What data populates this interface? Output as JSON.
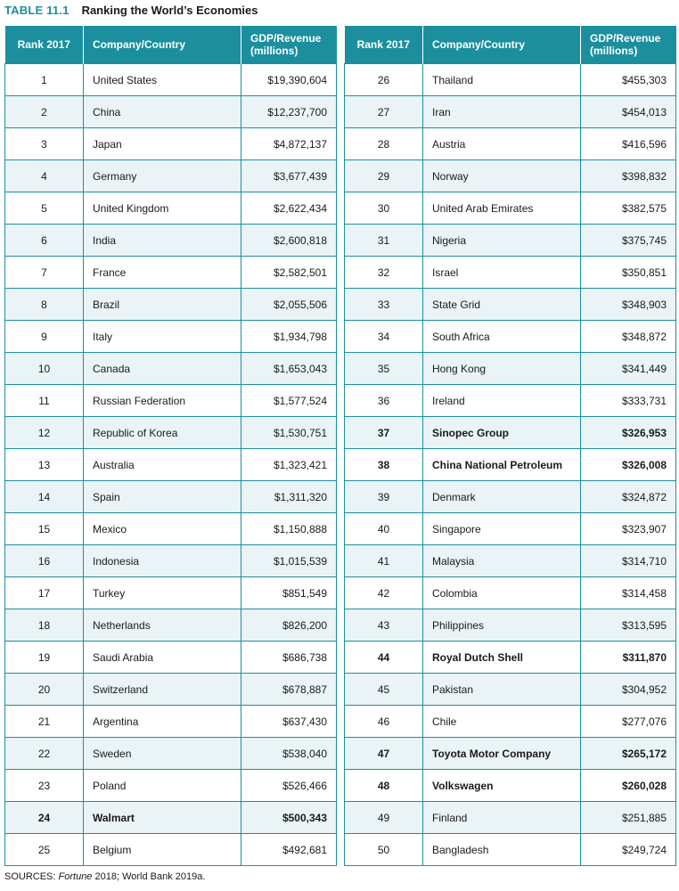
{
  "title": {
    "label": "TABLE 11.1",
    "text": "Ranking the World’s Economies"
  },
  "headers": {
    "rank": "Rank 2017",
    "name": "Company/Country",
    "value_line1": "GDP/Revenue",
    "value_line2": "(millions)"
  },
  "left_rows": [
    {
      "rank": "1",
      "name": "United States",
      "value": "$19,390,604",
      "bold": false
    },
    {
      "rank": "2",
      "name": "China",
      "value": "$12,237,700",
      "bold": false
    },
    {
      "rank": "3",
      "name": "Japan",
      "value": "$4,872,137",
      "bold": false
    },
    {
      "rank": "4",
      "name": "Germany",
      "value": "$3,677,439",
      "bold": false
    },
    {
      "rank": "5",
      "name": "United Kingdom",
      "value": "$2,622,434",
      "bold": false
    },
    {
      "rank": "6",
      "name": "India",
      "value": "$2,600,818",
      "bold": false
    },
    {
      "rank": "7",
      "name": "France",
      "value": "$2,582,501",
      "bold": false
    },
    {
      "rank": "8",
      "name": "Brazil",
      "value": "$2,055,506",
      "bold": false
    },
    {
      "rank": "9",
      "name": "Italy",
      "value": "$1,934,798",
      "bold": false
    },
    {
      "rank": "10",
      "name": "Canada",
      "value": "$1,653,043",
      "bold": false
    },
    {
      "rank": "11",
      "name": "Russian Federation",
      "value": "$1,577,524",
      "bold": false
    },
    {
      "rank": "12",
      "name": "Republic of Korea",
      "value": "$1,530,751",
      "bold": false
    },
    {
      "rank": "13",
      "name": "Australia",
      "value": "$1,323,421",
      "bold": false
    },
    {
      "rank": "14",
      "name": "Spain",
      "value": "$1,311,320",
      "bold": false
    },
    {
      "rank": "15",
      "name": "Mexico",
      "value": "$1,150,888",
      "bold": false
    },
    {
      "rank": "16",
      "name": "Indonesia",
      "value": "$1,015,539",
      "bold": false
    },
    {
      "rank": "17",
      "name": "Turkey",
      "value": "$851,549",
      "bold": false
    },
    {
      "rank": "18",
      "name": "Netherlands",
      "value": "$826,200",
      "bold": false
    },
    {
      "rank": "19",
      "name": "Saudi Arabia",
      "value": "$686,738",
      "bold": false
    },
    {
      "rank": "20",
      "name": "Switzerland",
      "value": "$678,887",
      "bold": false
    },
    {
      "rank": "21",
      "name": "Argentina",
      "value": "$637,430",
      "bold": false
    },
    {
      "rank": "22",
      "name": "Sweden",
      "value": "$538,040",
      "bold": false
    },
    {
      "rank": "23",
      "name": "Poland",
      "value": "$526,466",
      "bold": false
    },
    {
      "rank": "24",
      "name": "Walmart",
      "value": "$500,343",
      "bold": true
    },
    {
      "rank": "25",
      "name": "Belgium",
      "value": "$492,681",
      "bold": false
    }
  ],
  "right_rows": [
    {
      "rank": "26",
      "name": "Thailand",
      "value": "$455,303",
      "bold": false
    },
    {
      "rank": "27",
      "name": "Iran",
      "value": "$454,013",
      "bold": false
    },
    {
      "rank": "28",
      "name": "Austria",
      "value": "$416,596",
      "bold": false
    },
    {
      "rank": "29",
      "name": "Norway",
      "value": "$398,832",
      "bold": false
    },
    {
      "rank": "30",
      "name": "United Arab Emirates",
      "value": "$382,575",
      "bold": false
    },
    {
      "rank": "31",
      "name": "Nigeria",
      "value": "$375,745",
      "bold": false
    },
    {
      "rank": "32",
      "name": "Israel",
      "value": "$350,851",
      "bold": false
    },
    {
      "rank": "33",
      "name": "State Grid",
      "value": "$348,903",
      "bold": false
    },
    {
      "rank": "34",
      "name": "South Africa",
      "value": "$348,872",
      "bold": false
    },
    {
      "rank": "35",
      "name": "Hong Kong",
      "value": "$341,449",
      "bold": false
    },
    {
      "rank": "36",
      "name": "Ireland",
      "value": "$333,731",
      "bold": false
    },
    {
      "rank": "37",
      "name": "Sinopec Group",
      "value": "$326,953",
      "bold": true
    },
    {
      "rank": "38",
      "name": "China National Petroleum",
      "value": "$326,008",
      "bold": true
    },
    {
      "rank": "39",
      "name": "Denmark",
      "value": "$324,872",
      "bold": false
    },
    {
      "rank": "40",
      "name": "Singapore",
      "value": "$323,907",
      "bold": false
    },
    {
      "rank": "41",
      "name": "Malaysia",
      "value": "$314,710",
      "bold": false
    },
    {
      "rank": "42",
      "name": "Colombia",
      "value": "$314,458",
      "bold": false
    },
    {
      "rank": "43",
      "name": "Philippines",
      "value": "$313,595",
      "bold": false
    },
    {
      "rank": "44",
      "name": "Royal Dutch Shell",
      "value": "$311,870",
      "bold": true
    },
    {
      "rank": "45",
      "name": "Pakistan",
      "value": "$304,952",
      "bold": false
    },
    {
      "rank": "46",
      "name": "Chile",
      "value": "$277,076",
      "bold": false
    },
    {
      "rank": "47",
      "name": "Toyota Motor Company",
      "value": "$265,172",
      "bold": true
    },
    {
      "rank": "48",
      "name": "Volkswagen",
      "value": "$260,028",
      "bold": true
    },
    {
      "rank": "49",
      "name": "Finland",
      "value": "$251,885",
      "bold": false
    },
    {
      "rank": "50",
      "name": "Bangladesh",
      "value": "$249,724",
      "bold": false
    }
  ],
  "sources": {
    "prefix": "SOURCES: ",
    "italic": "Fortune",
    "rest": " 2018; World Bank 2019a."
  },
  "colors": {
    "accent": "#1c8f9e",
    "row_alt": "#eaf3f5"
  }
}
